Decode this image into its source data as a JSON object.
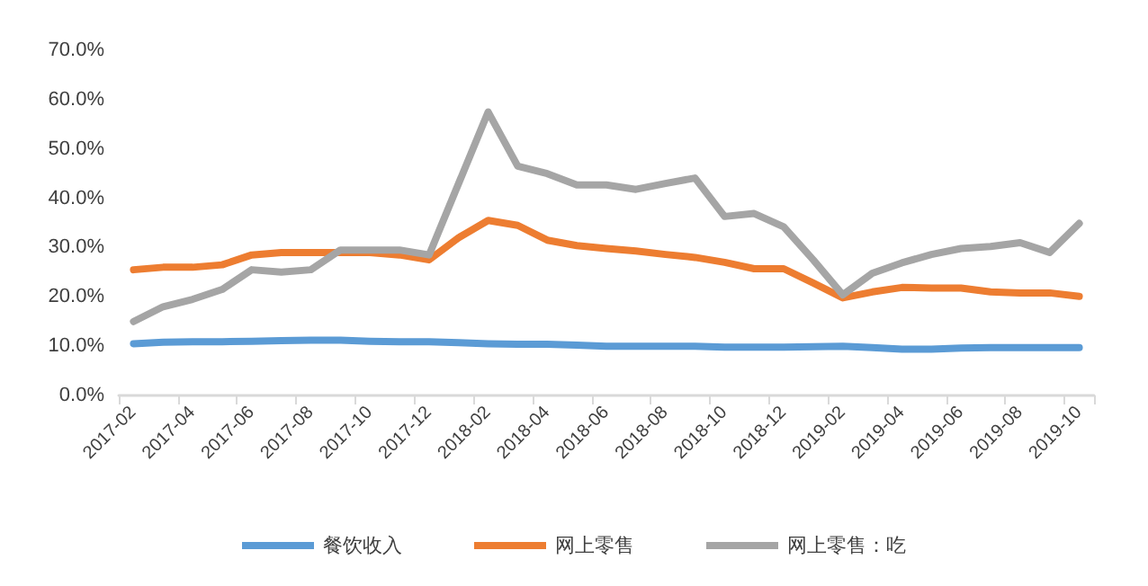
{
  "chart_data": {
    "type": "line",
    "categories": [
      "2017-02",
      null,
      "2017-04",
      null,
      "2017-06",
      null,
      "2017-08",
      null,
      "2017-10",
      null,
      "2017-12",
      null,
      "2018-02",
      null,
      "2018-04",
      null,
      "2018-06",
      null,
      "2018-08",
      null,
      "2018-10",
      null,
      "2018-12",
      null,
      "2019-02",
      null,
      "2019-04",
      null,
      "2019-06",
      null,
      "2019-08",
      null,
      "2019-10"
    ],
    "series": [
      {
        "name": "餐饮收入",
        "color": "#5b9bd5",
        "values": [
          10.5,
          10.8,
          10.9,
          10.9,
          11,
          11.1,
          11.2,
          11.2,
          11,
          10.9,
          10.9,
          10.7,
          10.5,
          10.4,
          10.4,
          10.2,
          10,
          10,
          10,
          10,
          9.8,
          9.8,
          9.8,
          9.9,
          10,
          9.7,
          9.4,
          9.4,
          9.6,
          9.7,
          9.7,
          9.7,
          9.7
        ]
      },
      {
        "name": "网上零售",
        "color": "#ed7d31",
        "values": [
          25.5,
          26,
          26,
          26.5,
          28.5,
          29,
          29,
          29,
          29,
          28.5,
          27.5,
          32,
          35.5,
          34.5,
          31.5,
          30.4,
          29.8,
          29.3,
          28.6,
          28,
          27,
          25.7,
          25.7,
          22.8,
          19.8,
          21,
          21.9,
          21.8,
          21.8,
          21,
          20.8,
          20.8,
          20.1
        ]
      },
      {
        "name": "网上零售：吃",
        "color": "#a5a5a5",
        "values": [
          15,
          18,
          19.5,
          21.5,
          25.5,
          25,
          25.5,
          29.5,
          29.5,
          29.5,
          28.5,
          43,
          57.5,
          46.5,
          45,
          42.7,
          42.7,
          41.8,
          43,
          44.1,
          36.3,
          36.9,
          34.2,
          27.5,
          20.4,
          24.8,
          26.9,
          28.6,
          29.8,
          30.2,
          31,
          29,
          34.9
        ]
      }
    ],
    "ylim": [
      0,
      70
    ],
    "yticks": [
      {
        "value": 0,
        "label": "0.0%"
      },
      {
        "value": 10,
        "label": "10.0%"
      },
      {
        "value": 20,
        "label": "20.0%"
      },
      {
        "value": 30,
        "label": "30.0%"
      },
      {
        "value": 40,
        "label": "40.0%"
      },
      {
        "value": 50,
        "label": "50.0%"
      },
      {
        "value": 60,
        "label": "60.0%"
      },
      {
        "value": 70,
        "label": "70.0%"
      }
    ],
    "grid": false,
    "legend": "bottom",
    "marker": "none",
    "line_style": "solid"
  }
}
